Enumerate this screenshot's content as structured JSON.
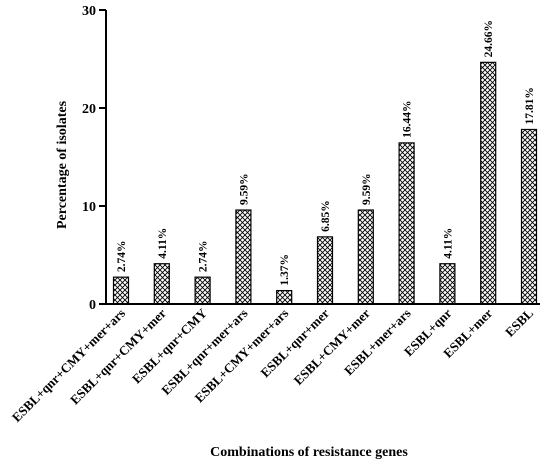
{
  "chart_data": {
    "type": "bar",
    "categories": [
      "ESBL+qnr+CMY+mer+ars",
      "ESBL+qnr+CMY+mer",
      "ESBL+qnr+CMY",
      "ESBL+qnr+mer+ars",
      "ESBL+CMY+mer+ars",
      "ESBL+qnr+mer",
      "ESBL+CMY+mer",
      "ESBL+mer+ars",
      "ESBL+qnr",
      "ESBL+mer",
      "ESBL"
    ],
    "values": [
      2.74,
      4.11,
      2.74,
      9.59,
      1.37,
      6.85,
      9.59,
      16.44,
      4.11,
      24.66,
      17.81
    ],
    "data_labels": [
      "2.74%",
      "4.11%",
      "2.74%",
      "9.59%",
      "1.37%",
      "6.85%",
      "9.59%",
      "16.44%",
      "4.11%",
      "24.66%",
      "17.81%"
    ],
    "title": "",
    "xlabel": "Combinations of resistance genes",
    "ylabel": "Percentage of isolates",
    "ylim": [
      0,
      30
    ],
    "yticks": [
      0,
      10,
      20,
      30
    ],
    "grid": false,
    "bar_fill": "crosshatch",
    "bar_color": "#000000"
  }
}
